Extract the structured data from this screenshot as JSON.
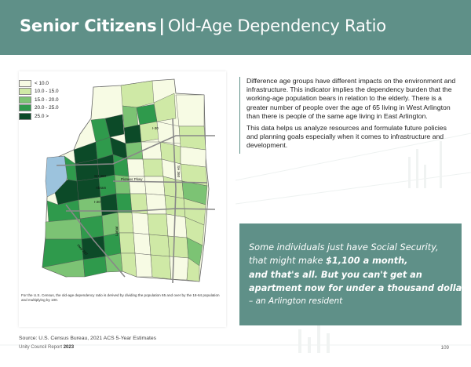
{
  "header": {
    "title_bold": "Senior Citizens",
    "separator": "|",
    "title_light": "Old-Age Dependency Ratio"
  },
  "legend": {
    "items": [
      {
        "label": "< 10.0",
        "color": "#f7fbe4"
      },
      {
        "label": "10.0 - 15.0",
        "color": "#cfe9a6"
      },
      {
        "label": "15.0 - 20.0",
        "color": "#7cc374"
      },
      {
        "label": "20.0 - 25.0",
        "color": "#2f9a4c"
      },
      {
        "label": "25.0 >",
        "color": "#0c4a28"
      }
    ]
  },
  "map": {
    "labels": {
      "i30_north": "I-30",
      "i20": "I-20",
      "pioneer": "Pioneer Pkwy",
      "sh360": "SH 360",
      "sh360_west": "SH 360",
      "i20_south": "Hwy 287",
      "abram": "Abram",
      "lamar": "Lamar"
    },
    "note": "For the U.S. Census, the old-age dependency ratio is derived by dividing the population 65 and over by the 18-64 population and multiplying by 100."
  },
  "body": {
    "paragraph1": "Difference age groups have different impacts on the environment and infrastructure. This indicator implies the dependency burden that the working-age population bears in relation to the elderly. There is a greater number of people over the age of 65 living in West Arlington than there is people of the same age living in East Arlington.",
    "paragraph2": "This data helps us analyze resources and formulate future policies and planning goals especially when it comes to infrastructure and development."
  },
  "quote": {
    "line1": "Some individuals just have Social Security,",
    "line2_a": "that might make ",
    "line2_b": "$1,100 a month,",
    "line3": "and that's all. But you can't get an",
    "line4": "apartment now for under a thousand dollars.",
    "attribution": "– an Arlington resident"
  },
  "footer": {
    "source": "Source: U.S. Census Bureau, 2021 ACS 5-Year Estimates",
    "report_name": "Unity Council Report",
    "report_year": "2023",
    "page_number": "109"
  }
}
